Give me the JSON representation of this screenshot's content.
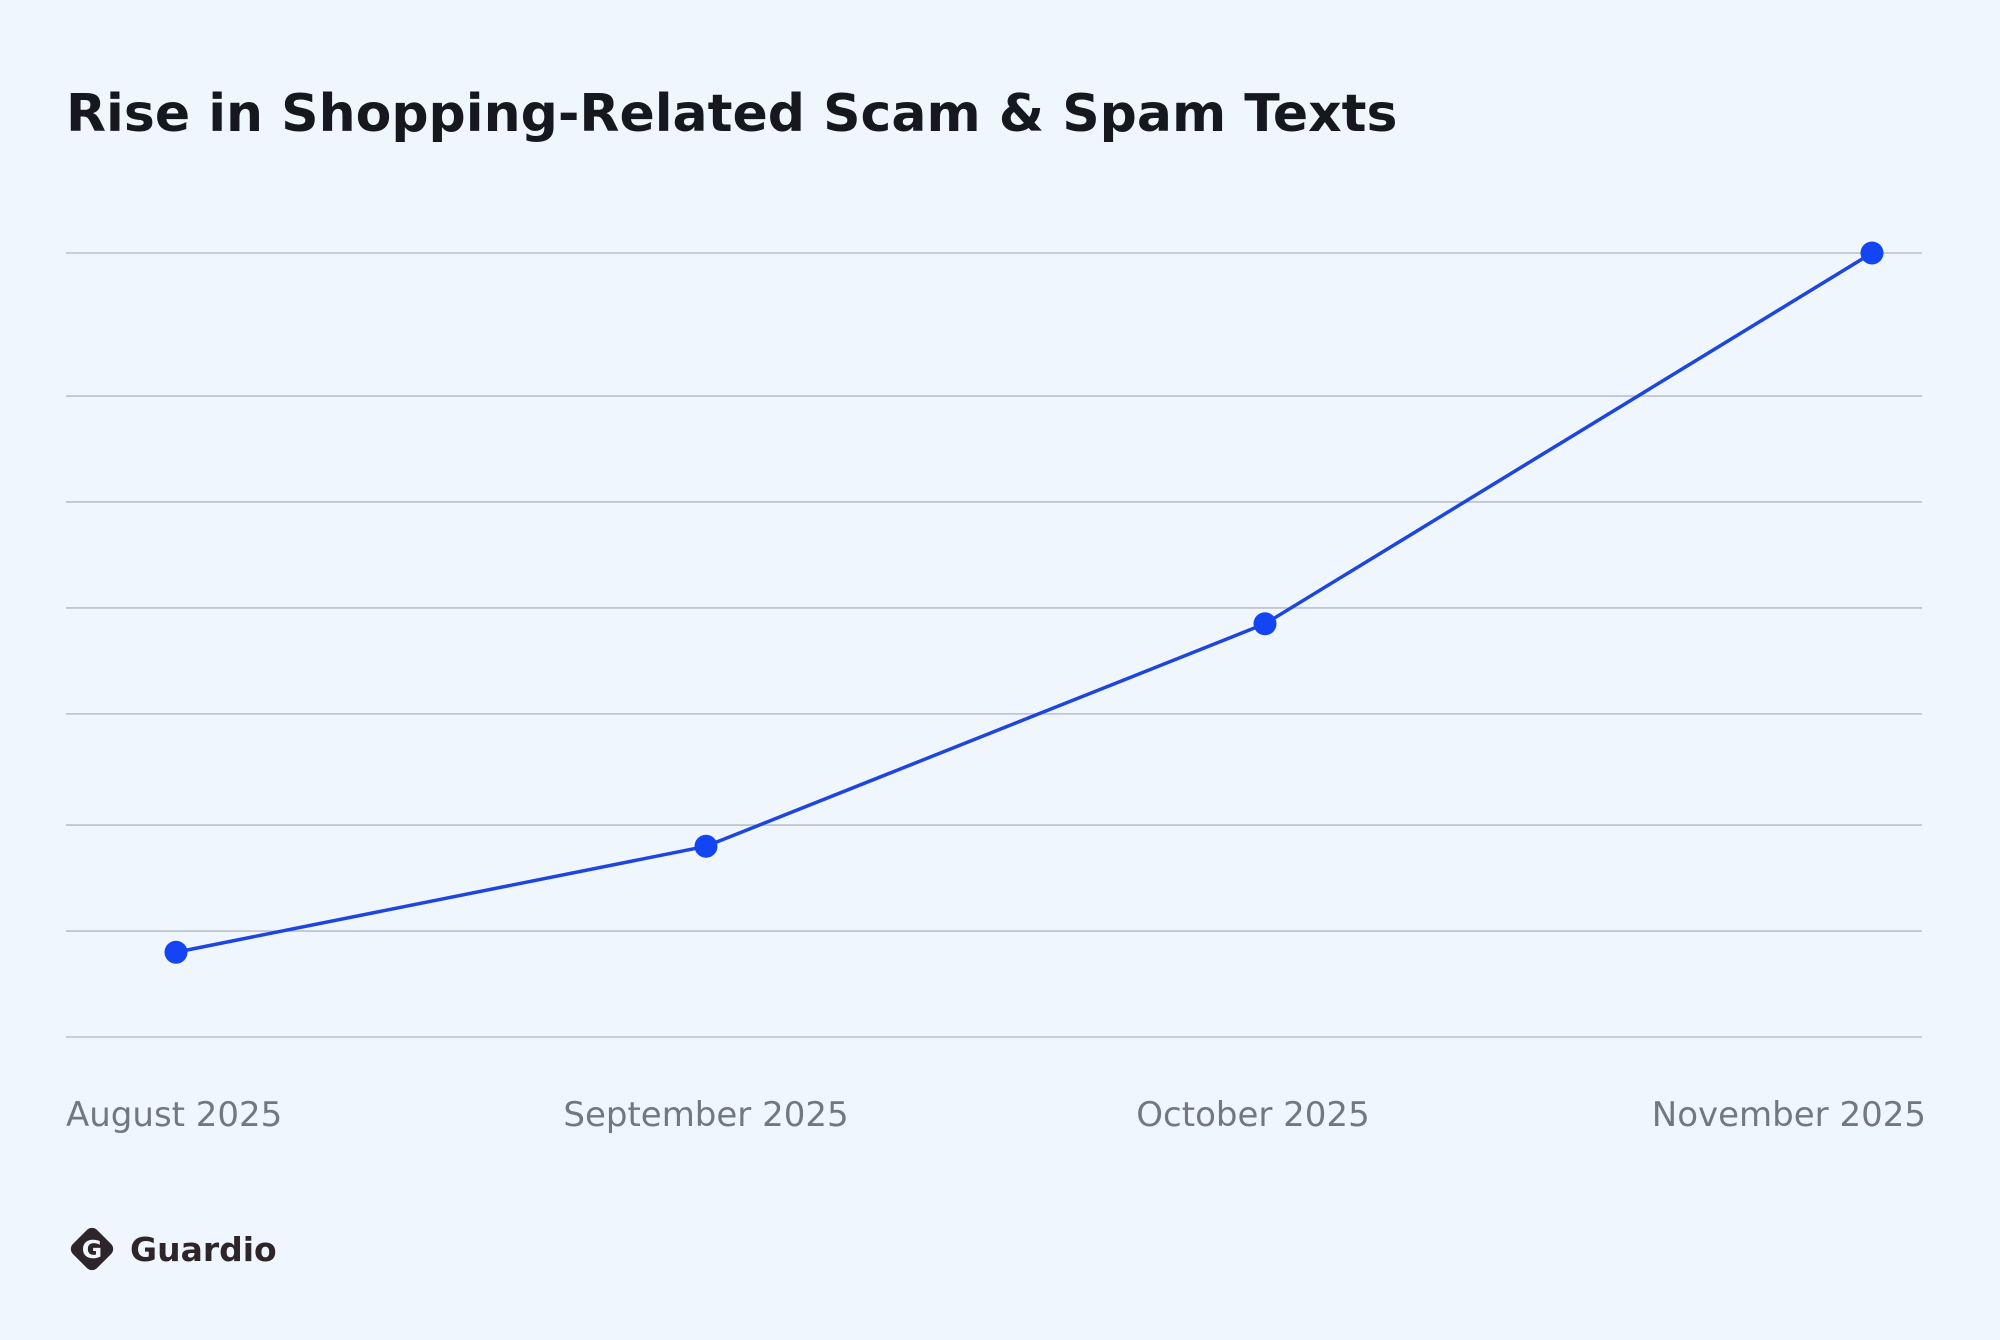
{
  "chart_data": {
    "type": "line",
    "title": "Rise in Shopping-Related Scam & Spam Texts",
    "xlabel": "",
    "ylabel": "",
    "categories": [
      "August 2025",
      "September 2025",
      "October 2025",
      "November 2025"
    ],
    "series": [
      {
        "values": [
          0.5,
          1.5,
          3.6,
          7.1
        ]
      }
    ],
    "ylim": [
      -0.3,
      7.1
    ],
    "y_gridlines": [
      -0.3,
      0.7,
      1.7,
      2.75,
      3.75,
      4.75,
      5.75,
      7.1
    ],
    "y_tick_labels_shown": false,
    "grid": true,
    "legend": "none",
    "colors": {
      "line": "#1d45e0",
      "marker": "#1445f5",
      "grid": "#b9c0cb",
      "tick_label": "#727882",
      "title": "#15191f",
      "background": "#f0f6fd"
    }
  },
  "brand": {
    "name": "Guardio",
    "logo_icon": "guardio-shield-g-icon",
    "logo_letter": "G",
    "color": "#2d2529"
  }
}
